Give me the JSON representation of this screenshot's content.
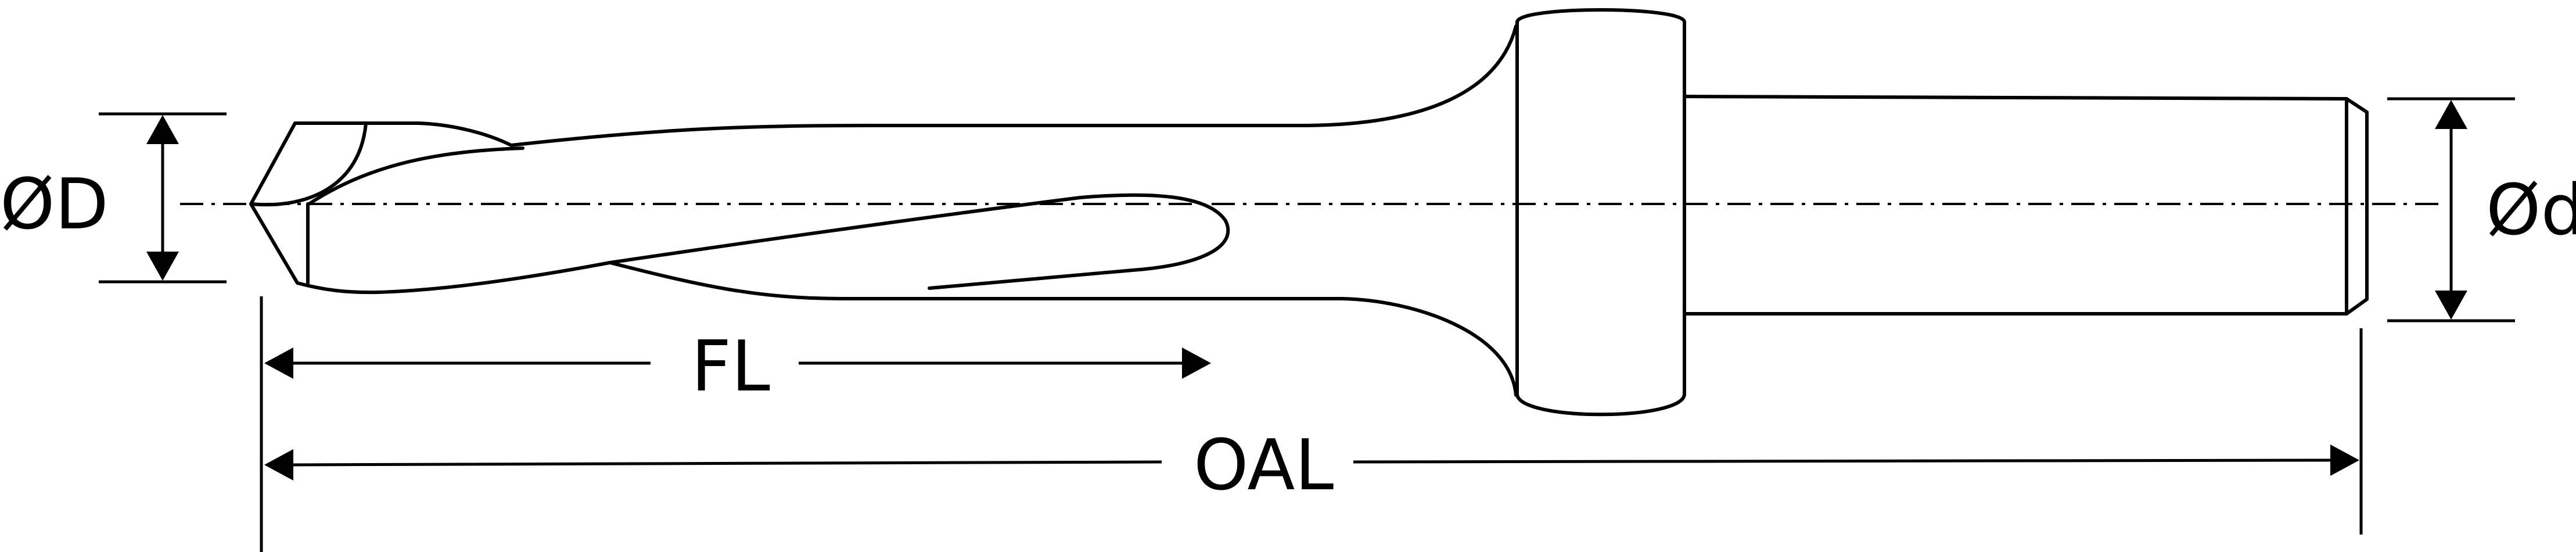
{
  "labels": {
    "diameter_drill": "ØD",
    "diameter_shank": "Ød",
    "flute_length": "FL",
    "overall_length": "OAL"
  },
  "colors": {
    "line": "#000000",
    "background": "#ffffff"
  }
}
